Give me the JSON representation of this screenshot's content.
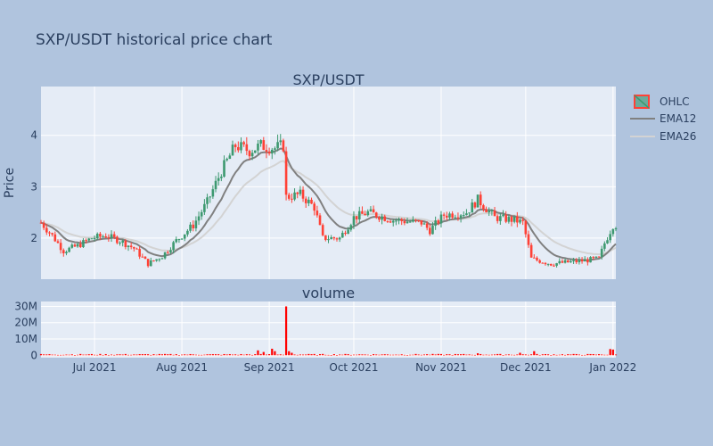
{
  "chart_data": {
    "type": "candlestick",
    "title": "SXP/USDT historical price chart",
    "subtitles": [
      "SXP/USDT",
      "volume"
    ],
    "ylabel": "Price",
    "x_range": [
      "2021-06-12",
      "2022-01-02"
    ],
    "x_ticks": [
      {
        "date": "2021-07-01",
        "label": "Jul 2021"
      },
      {
        "date": "2021-08-01",
        "label": "Aug 2021"
      },
      {
        "date": "2021-09-01",
        "label": "Sep 2021"
      },
      {
        "date": "2021-10-01",
        "label": "Oct 2021"
      },
      {
        "date": "2021-11-01",
        "label": "Nov 2021"
      },
      {
        "date": "2021-12-01",
        "label": "Dec 2021"
      },
      {
        "date": "2022-01-01",
        "label": "Jan 2022"
      }
    ],
    "price_ylim": [
      1.2,
      4.95
    ],
    "price_ticks": [
      {
        "v": 2,
        "label": "2"
      },
      {
        "v": 3,
        "label": "3"
      },
      {
        "v": 4,
        "label": "4"
      }
    ],
    "volume_ylim": [
      -1500000,
      33000000
    ],
    "volume_ticks": [
      {
        "v": 0,
        "label": "0"
      },
      {
        "v": 10000000,
        "label": "10M"
      },
      {
        "v": 20000000,
        "label": "20M"
      },
      {
        "v": 30000000,
        "label": "30M"
      }
    ],
    "legend": {
      "position": "right",
      "items": [
        {
          "name": "OHLC",
          "kind": "candle",
          "color": "#3d9970",
          "color2": "#ff4136"
        },
        {
          "name": "EMA12",
          "kind": "line",
          "color": "#808080"
        },
        {
          "name": "EMA26",
          "kind": "line",
          "color": "#d3d3d3"
        }
      ]
    },
    "colors": {
      "up": "#3d9970",
      "down": "#ff4136",
      "volume": "#ff0000",
      "background": "#b0c4de",
      "plot": "#e5ecf6",
      "grid": "#ffffff"
    },
    "anchors": [
      [
        "2021-06-12",
        2.3
      ],
      [
        "2021-06-16",
        2.05
      ],
      [
        "2021-06-20",
        1.75
      ],
      [
        "2021-06-25",
        1.85
      ],
      [
        "2021-06-30",
        2.0
      ],
      [
        "2021-07-05",
        2.05
      ],
      [
        "2021-07-10",
        1.95
      ],
      [
        "2021-07-15",
        1.8
      ],
      [
        "2021-07-20",
        1.5
      ],
      [
        "2021-07-25",
        1.65
      ],
      [
        "2021-07-30",
        1.95
      ],
      [
        "2021-08-05",
        2.25
      ],
      [
        "2021-08-10",
        2.7
      ],
      [
        "2021-08-15",
        3.3
      ],
      [
        "2021-08-20",
        3.8
      ],
      [
        "2021-08-25",
        3.7
      ],
      [
        "2021-08-29",
        3.8
      ],
      [
        "2021-09-03",
        3.75
      ],
      [
        "2021-09-06",
        3.8
      ],
      [
        "2021-09-07",
        2.8
      ],
      [
        "2021-09-12",
        2.85
      ],
      [
        "2021-09-17",
        2.6
      ],
      [
        "2021-09-20",
        2.0
      ],
      [
        "2021-09-26",
        2.0
      ],
      [
        "2021-10-01",
        2.4
      ],
      [
        "2021-10-06",
        2.5
      ],
      [
        "2021-10-15",
        2.35
      ],
      [
        "2021-10-25",
        2.3
      ],
      [
        "2021-10-28",
        2.15
      ],
      [
        "2021-11-02",
        2.45
      ],
      [
        "2021-11-10",
        2.5
      ],
      [
        "2021-11-14",
        2.75
      ],
      [
        "2021-11-20",
        2.4
      ],
      [
        "2021-11-27",
        2.35
      ],
      [
        "2021-11-30",
        2.3
      ],
      [
        "2021-12-03",
        1.6
      ],
      [
        "2021-12-10",
        1.5
      ],
      [
        "2021-12-20",
        1.55
      ],
      [
        "2021-12-27",
        1.6
      ],
      [
        "2021-12-29",
        1.9
      ],
      [
        "2022-01-01",
        2.25
      ]
    ],
    "volume_spikes": [
      [
        "2021-08-28",
        3000000
      ],
      [
        "2021-08-30",
        2000000
      ],
      [
        "2021-09-02",
        4000000
      ],
      [
        "2021-09-03",
        2500000
      ],
      [
        "2021-09-07",
        30000000
      ],
      [
        "2021-09-08",
        2500000
      ],
      [
        "2021-09-09",
        1500000
      ],
      [
        "2021-11-14",
        1200000
      ],
      [
        "2021-11-29",
        1500000
      ],
      [
        "2021-12-04",
        2500000
      ],
      [
        "2021-12-31",
        3800000
      ],
      [
        "2022-01-01",
        3500000
      ]
    ]
  }
}
